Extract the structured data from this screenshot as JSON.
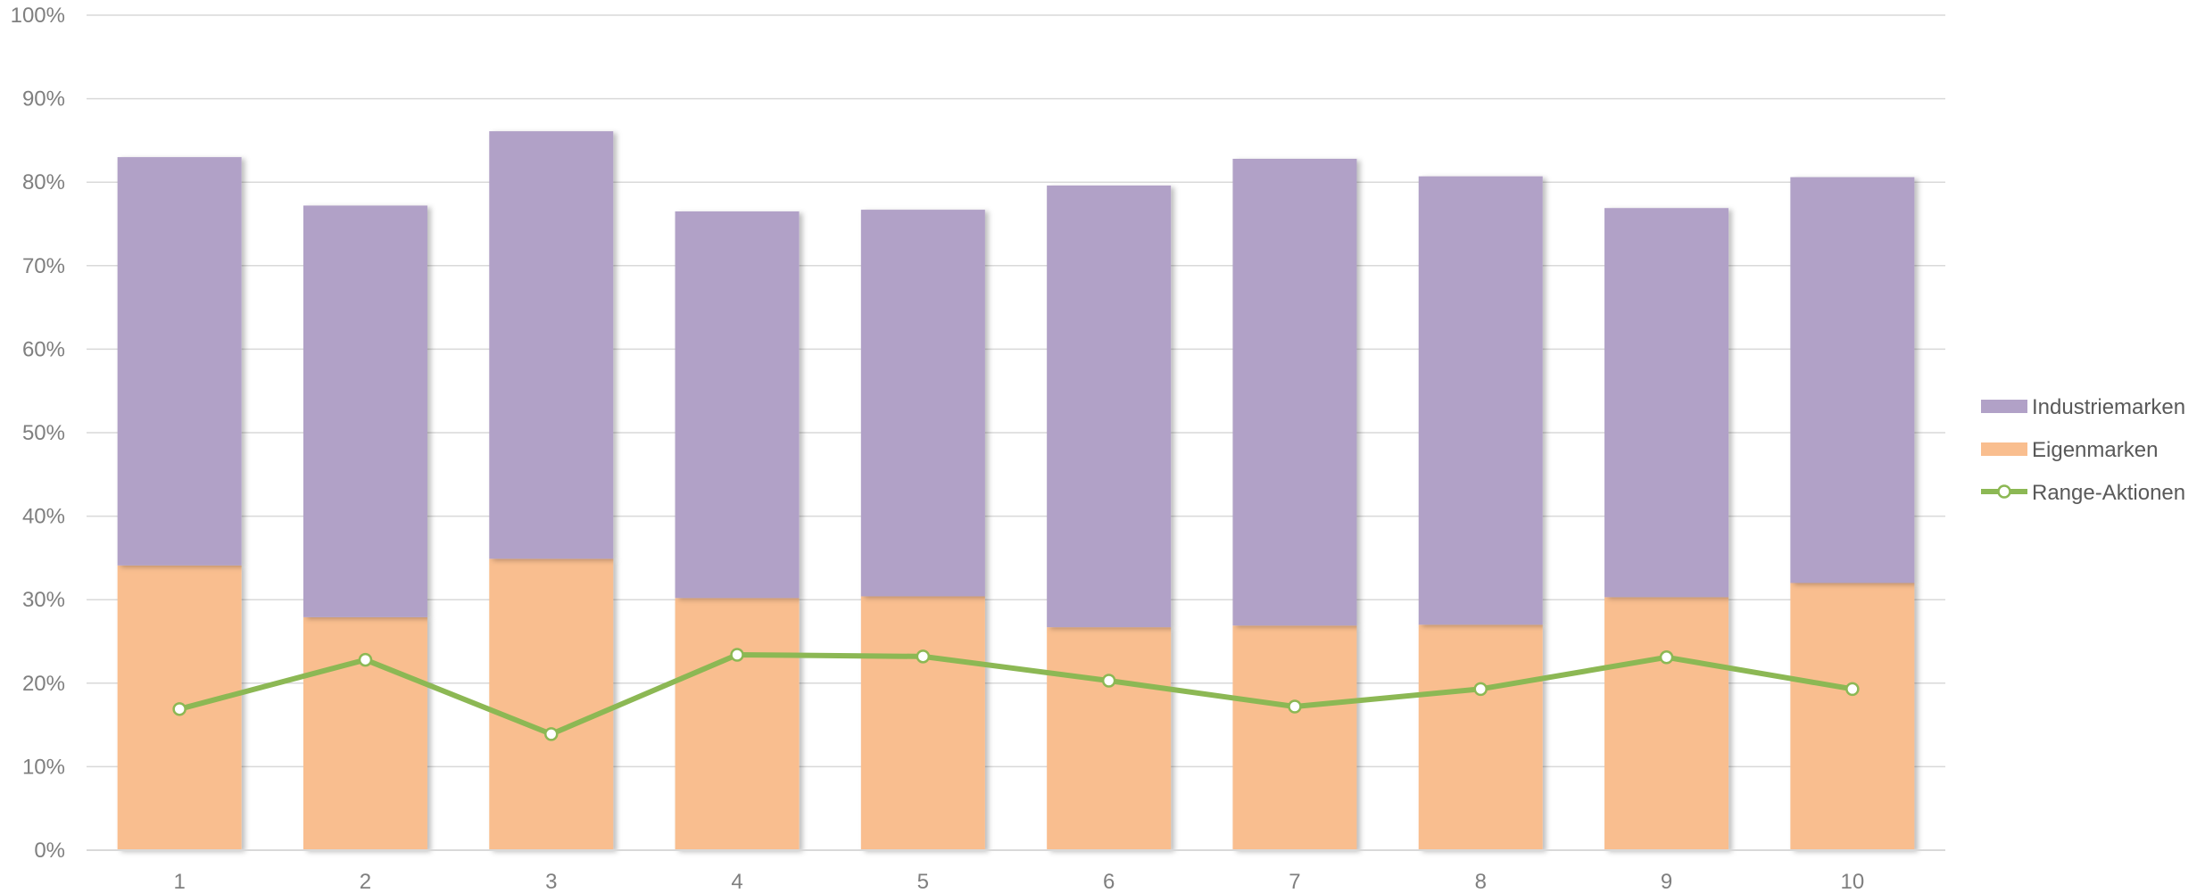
{
  "chart_data": {
    "type": "bar",
    "stacked": true,
    "categories": [
      "1",
      "2",
      "3",
      "4",
      "5",
      "6",
      "7",
      "8",
      "9",
      "10"
    ],
    "series": [
      {
        "name": "Eigenmarken",
        "kind": "bar",
        "color": "#f9be8f",
        "values": [
          34.1,
          27.9,
          34.9,
          30.2,
          30.4,
          26.7,
          26.9,
          27.0,
          30.3,
          32.0
        ]
      },
      {
        "name": "Industriemarken",
        "kind": "bar",
        "color": "#b1a1c7",
        "values": [
          48.9,
          49.3,
          51.2,
          46.3,
          46.3,
          52.9,
          55.9,
          53.7,
          46.6,
          48.6
        ]
      },
      {
        "name": "Range-Aktionen",
        "kind": "line",
        "color": "#8cb854",
        "values": [
          16.9,
          22.8,
          13.9,
          23.4,
          23.2,
          20.3,
          17.2,
          19.3,
          23.1,
          19.3
        ]
      }
    ],
    "ylim": [
      0,
      100
    ],
    "yticks": [
      "0%",
      "10%",
      "20%",
      "30%",
      "40%",
      "50%",
      "60%",
      "70%",
      "80%",
      "90%",
      "100%"
    ],
    "grid": true,
    "legend_position": "right",
    "legend_order": [
      "Industriemarken",
      "Eigenmarken",
      "Range-Aktionen"
    ],
    "title": "",
    "xlabel": "",
    "ylabel": ""
  }
}
